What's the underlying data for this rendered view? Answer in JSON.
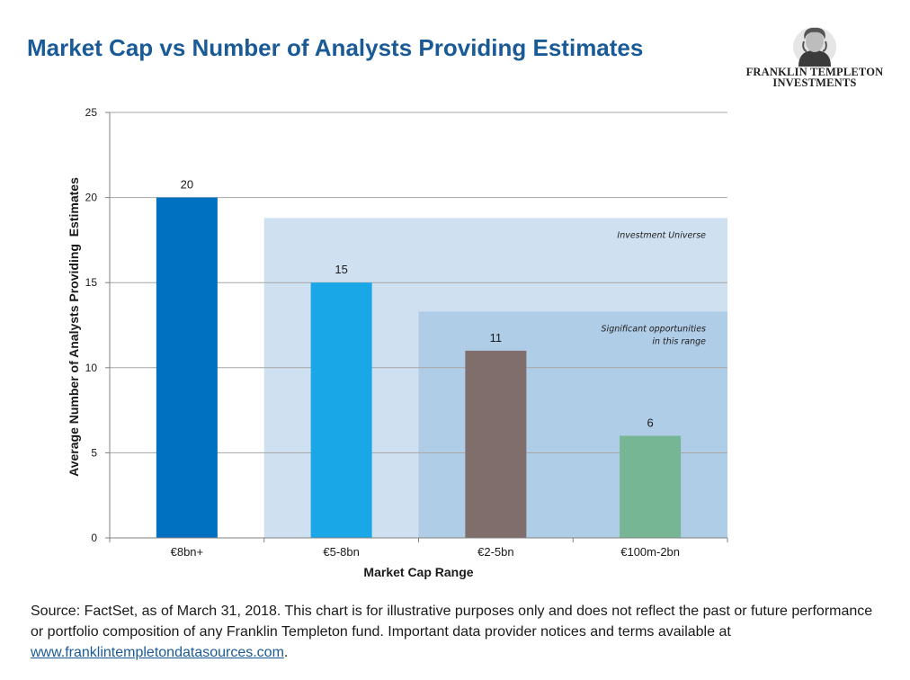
{
  "header": {
    "title": "Market Cap vs Number of Analysts Providing Estimates",
    "logo_line1": "FRANKLIN TEMPLETON",
    "logo_line2": "INVESTMENTS"
  },
  "chart_data": {
    "type": "bar",
    "title": "Market Cap vs Number of Analysts Providing Estimates",
    "xlabel": "Market Cap Range",
    "ylabel": "Average Number of Analysts Providing  Estimates",
    "categories": [
      "€8bn+",
      "€5-8bn",
      "€2-5bn",
      "€100m-2bn"
    ],
    "values": [
      20,
      15,
      11,
      6
    ],
    "value_labels": [
      "20",
      "15",
      "11",
      "6"
    ],
    "bar_colors": [
      "#0070c0",
      "#1aa7e8",
      "#7f6e6c",
      "#76b694"
    ],
    "ylim": [
      0,
      25
    ],
    "yticks": [
      0,
      5,
      10,
      15,
      20,
      25
    ],
    "grid": true,
    "shaded_regions": [
      {
        "label": "Investment Universe",
        "from_category": 1,
        "to_category": 3,
        "top_value": 18.8,
        "color": "#cfe0f1"
      },
      {
        "label_lines": [
          "Significant opportunities",
          "in this range"
        ],
        "from_category": 2,
        "to_category": 3,
        "top_value": 13.3,
        "color": "#b0cde8"
      }
    ]
  },
  "footnote": {
    "text": "Source: FactSet, as of March 31, 2018. This chart is for illustrative purposes only and does not reflect the past or future performance or portfolio composition of any Franklin Templeton fund. Important data provider notices and terms available at ",
    "link": "www.franklintempletondatasources.com",
    "end": "."
  }
}
